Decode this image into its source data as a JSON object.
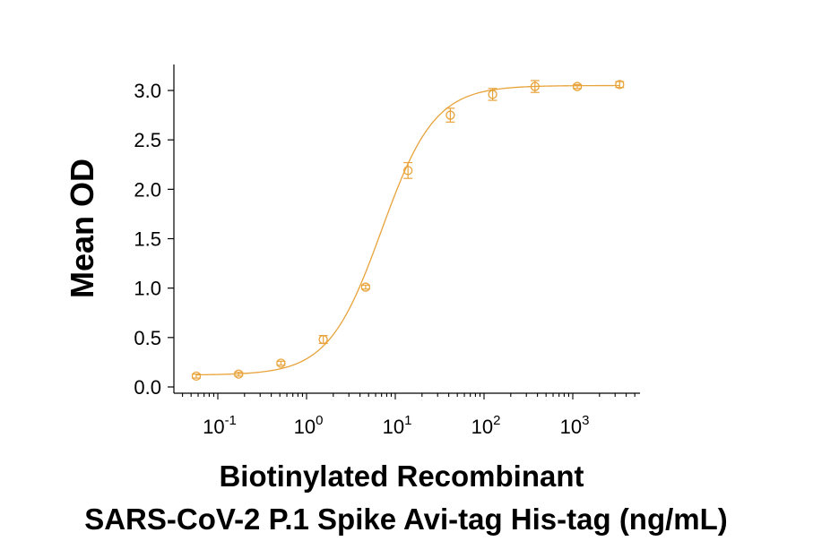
{
  "chart_data": {
    "type": "scatter",
    "title": "",
    "xlabel": [
      "Biotinylated Recombinant",
      "SARS-CoV-2 P.1 Spike Avi-tag His-tag (ng/mL)"
    ],
    "ylabel": "Mean OD",
    "x_scale": "log",
    "xlim": [
      0.035,
      5500
    ],
    "ylim": [
      0,
      3.2
    ],
    "y_ticks": [
      {
        "value": 0.0,
        "label": "0.0"
      },
      {
        "value": 0.5,
        "label": "0.5"
      },
      {
        "value": 1.0,
        "label": "1.0"
      },
      {
        "value": 1.5,
        "label": "1.5"
      },
      {
        "value": 2.0,
        "label": "2.0"
      },
      {
        "value": 2.5,
        "label": "2.5"
      },
      {
        "value": 3.0,
        "label": "3.0"
      }
    ],
    "x_ticks": [
      {
        "value": 0.1,
        "base": "10",
        "exp": "-1"
      },
      {
        "value": 1,
        "base": "10",
        "exp": "0"
      },
      {
        "value": 10,
        "base": "10",
        "exp": "1"
      },
      {
        "value": 100,
        "base": "10",
        "exp": "2"
      },
      {
        "value": 1000,
        "base": "10",
        "exp": "3"
      }
    ],
    "series": [
      {
        "color": "#E8A33A",
        "points": [
          {
            "x": 0.0572,
            "y": 0.11,
            "err": 0.02
          },
          {
            "x": 0.1716,
            "y": 0.13,
            "err": 0.02
          },
          {
            "x": 0.5144,
            "y": 0.24,
            "err": 0.02
          },
          {
            "x": 1.543,
            "y": 0.48,
            "err": 0.04
          },
          {
            "x": 4.63,
            "y": 1.01,
            "err": 0.02
          },
          {
            "x": 13.9,
            "y": 2.19,
            "err": 0.08
          },
          {
            "x": 41.7,
            "y": 2.75,
            "err": 0.07
          },
          {
            "x": 125,
            "y": 2.96,
            "err": 0.06
          },
          {
            "x": 375,
            "y": 3.04,
            "err": 0.06
          },
          {
            "x": 1125,
            "y": 3.04,
            "err": 0.02
          },
          {
            "x": 3375,
            "y": 3.06,
            "err": 0.03
          }
        ],
        "fit": {
          "model": "4PL",
          "bottom": 0.12,
          "top": 3.05,
          "ec50": 7.0,
          "hill": 1.45
        }
      }
    ]
  }
}
